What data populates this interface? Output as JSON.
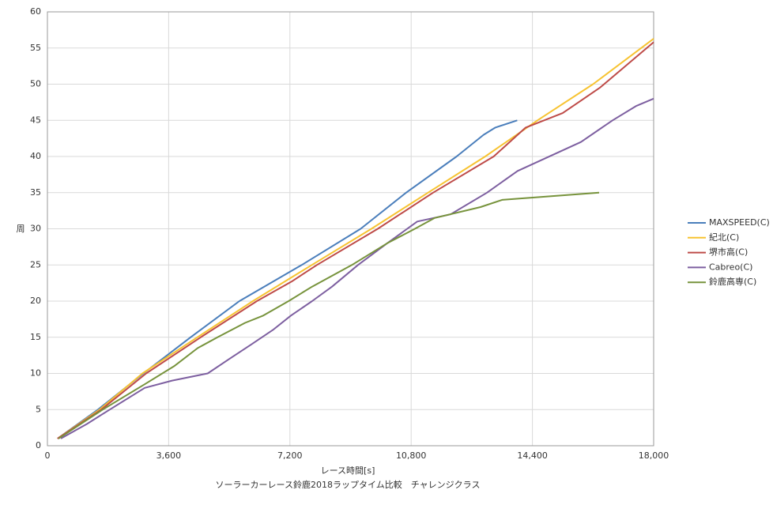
{
  "chart_data": {
    "type": "line",
    "x_label": "レース時間[s]",
    "y_label": "周",
    "title": "ソーラーカーレース鈴鹿2018ラップタイム比較　チャレンジクラス",
    "xlim": [
      0,
      18000
    ],
    "xticks": [
      0,
      {
        "value": 3600,
        "label": "3,600"
      },
      {
        "value": 7200,
        "label": "7,200"
      },
      {
        "value": 10800,
        "label": "10,800"
      },
      {
        "value": 14400,
        "label": "14,400"
      },
      {
        "value": 18000,
        "label": "18,000"
      }
    ],
    "ylim": [
      0,
      60
    ],
    "yticks": [
      0,
      5,
      10,
      15,
      20,
      25,
      30,
      35,
      40,
      45,
      50,
      55,
      60
    ],
    "grid": true,
    "legend": "right",
    "series": [
      {
        "name": "MAXSPEED(C)",
        "color": "#4a7ebb",
        "x": [
          300,
          1500,
          2850,
          4250,
          5700,
          7550,
          9300,
          10650,
          12150,
          12950,
          13300,
          13950
        ],
        "values": [
          1,
          5,
          10,
          15,
          20,
          25,
          30,
          35,
          40,
          43,
          44,
          45
        ]
      },
      {
        "name": "紀北(C)",
        "color": "#f7c331",
        "x": [
          300,
          1550,
          2820,
          4450,
          6100,
          7850,
          9620,
          11300,
          13000,
          14550,
          16200,
          18000
        ],
        "values": [
          1,
          5,
          10,
          15,
          20,
          25,
          30,
          35,
          40,
          45,
          50,
          56.3
        ]
      },
      {
        "name": "堺市高(C)",
        "color": "#be4b48",
        "x": [
          300,
          1600,
          2930,
          4550,
          6220,
          7250,
          8000,
          9810,
          11450,
          13250,
          14200,
          15300,
          16400,
          18000
        ],
        "values": [
          1,
          5,
          10,
          15,
          20,
          22.7,
          25,
          30,
          35,
          40,
          44,
          46,
          49.5,
          55.8
        ]
      },
      {
        "name": "Cabreo(C)",
        "color": "#7d5fa0",
        "x": [
          400,
          1170,
          1850,
          2890,
          3700,
          4760,
          5400,
          6050,
          6690,
          7230,
          7860,
          8450,
          9220,
          10090,
          10980,
          11970,
          13050,
          13960,
          15840,
          16780,
          17490,
          18000
        ],
        "values": [
          1,
          3,
          5,
          8,
          9,
          10,
          12,
          14,
          16,
          18,
          20,
          22,
          25,
          28,
          31,
          32,
          35,
          38,
          42,
          45,
          47,
          48
        ]
      },
      {
        "name": "鈴鹿高専(C)",
        "color": "#77933c",
        "x": [
          330,
          1640,
          2890,
          3760,
          4460,
          5050,
          5870,
          6410,
          7160,
          7860,
          9040,
          10090,
          10910,
          11500,
          12860,
          13500,
          16380
        ],
        "values": [
          1,
          5,
          8.5,
          11,
          13.5,
          15,
          17,
          18,
          20,
          22,
          25,
          28,
          30,
          31.5,
          33,
          34,
          35
        ]
      }
    ]
  }
}
